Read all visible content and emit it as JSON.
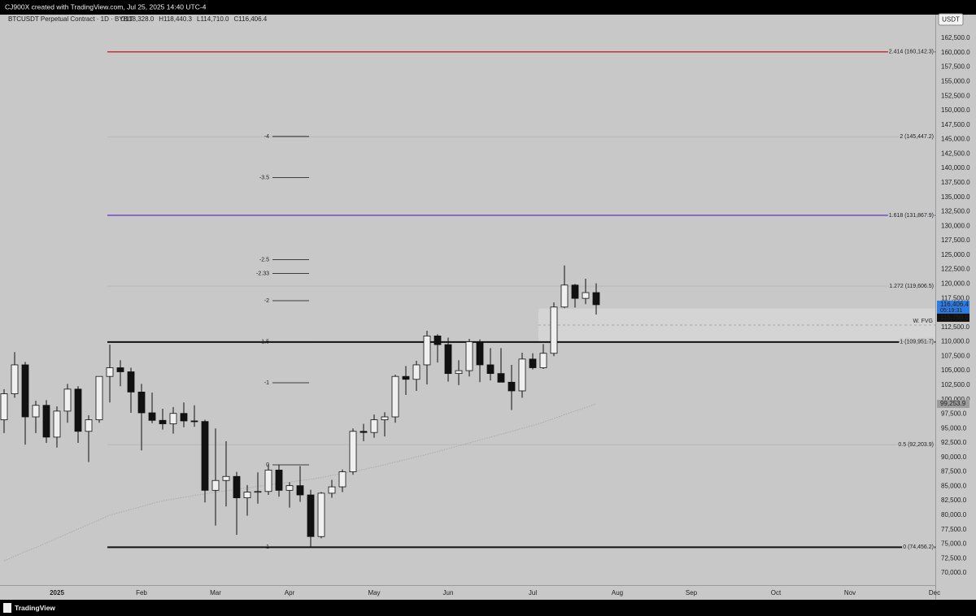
{
  "header": "CJ900X created with TradingView.com, Jul 25, 2025 14:40 UTC-4",
  "footer": "TradingView",
  "currency_button": "USDT",
  "chart_data": {
    "type": "candlestick",
    "symbol": "BTCUSDT Perpetual Contract · 1D · BYBIT",
    "ohlc": [
      "O118,328.0",
      "H118,440.3",
      "L114,710.0",
      "C116,406.4"
    ],
    "up_color": "#f0f0f0",
    "down_color": "#111111",
    "categories": [
      null,
      null,
      null,
      null,
      null,
      "2025",
      null,
      null,
      null,
      null,
      null,
      null,
      null,
      "Feb",
      null,
      null,
      null,
      null,
      null,
      null,
      "Mar",
      null,
      null,
      null,
      null,
      null,
      null,
      "Apr",
      null,
      null,
      null,
      null,
      null,
      null,
      null,
      "May",
      null,
      null,
      null,
      null,
      null,
      null,
      "Jun",
      null,
      null,
      null,
      null,
      null,
      null,
      null,
      "Jul",
      null,
      null,
      null,
      null,
      null,
      null,
      null,
      "Aug",
      null,
      null,
      null,
      null,
      null,
      null,
      "Sep",
      null,
      null,
      null,
      null,
      null,
      null,
      null,
      "Oct",
      null,
      null,
      null,
      null,
      null,
      null,
      "Nov",
      null,
      null,
      null,
      null,
      null,
      null,
      null,
      "Dec"
    ],
    "open": [
      96500,
      101000,
      106000,
      97000,
      99000,
      93500,
      98000,
      101800,
      94500,
      96500,
      104000,
      105500,
      104800,
      101300,
      97700,
      96400,
      95800,
      97600,
      96300,
      96200,
      84300,
      86000,
      86700,
      83000,
      84000,
      84100,
      87800,
      84300,
      85100,
      83500,
      76300,
      83800,
      84900,
      87500,
      94500,
      94300,
      96500,
      97000,
      104000,
      103500,
      106000,
      111000,
      109500,
      104500,
      105000,
      110000,
      106000,
      104500,
      103000,
      101500,
      107000,
      105500,
      108000,
      116000,
      119800,
      117500,
      118500,
      null,
      null,
      null,
      null,
      null,
      null,
      null,
      null,
      null,
      null,
      null,
      null,
      null,
      null,
      null,
      null,
      null,
      null,
      null,
      null,
      null,
      null,
      null,
      null,
      null,
      null,
      null,
      null,
      null,
      null,
      null,
      null
    ],
    "high": [
      101800,
      108200,
      106500,
      99800,
      99900,
      98800,
      102700,
      102300,
      97300,
      104000,
      109500,
      106800,
      105500,
      102700,
      101200,
      98400,
      98700,
      99500,
      99000,
      96500,
      95000,
      92800,
      87500,
      85200,
      87400,
      88800,
      88700,
      85700,
      88500,
      84400,
      84000,
      86100,
      87900,
      95000,
      95800,
      97400,
      97800,
      104300,
      105800,
      106700,
      111900,
      111300,
      110700,
      106800,
      110500,
      110400,
      108900,
      108900,
      106000,
      108100,
      108000,
      109600,
      116800,
      123200,
      120000,
      120900,
      120100,
      null,
      null,
      null,
      null,
      null,
      null,
      null,
      null,
      null,
      null,
      null,
      null,
      null,
      null,
      null,
      null,
      null,
      null,
      null,
      null,
      null,
      null,
      null,
      null,
      null,
      null,
      null,
      null,
      null,
      null,
      null,
      null
    ],
    "low": [
      94200,
      100300,
      92200,
      94200,
      92500,
      91700,
      96000,
      92500,
      89200,
      96000,
      99500,
      102300,
      97700,
      91200,
      95900,
      94800,
      94100,
      95200,
      95300,
      82200,
      78200,
      81500,
      76600,
      79900,
      82000,
      83500,
      83200,
      81300,
      82300,
      74500,
      76000,
      83000,
      84000,
      87000,
      92800,
      93400,
      93600,
      96000,
      100800,
      101500,
      102600,
      106400,
      103100,
      102500,
      104000,
      103000,
      103300,
      103400,
      98200,
      100300,
      105200,
      105300,
      107500,
      115800,
      115900,
      116500,
      114710,
      null,
      null,
      null,
      null,
      null,
      null,
      null,
      null,
      null,
      null,
      null,
      null,
      null,
      null,
      null,
      null,
      null,
      null,
      null,
      null,
      null,
      null,
      null,
      null,
      null,
      null,
      null,
      null,
      null,
      null,
      null,
      null
    ],
    "close": [
      101000,
      106000,
      97000,
      99000,
      93500,
      98000,
      101800,
      94500,
      96500,
      104000,
      105500,
      104800,
      101300,
      97700,
      96400,
      95800,
      97600,
      96300,
      96200,
      84300,
      86000,
      86700,
      83000,
      84000,
      84100,
      87800,
      84300,
      85100,
      83500,
      76300,
      83800,
      84900,
      87500,
      94500,
      94300,
      96500,
      97000,
      104000,
      103500,
      106000,
      111000,
      109500,
      104500,
      105000,
      110000,
      106000,
      104500,
      103000,
      101500,
      107000,
      105500,
      108000,
      116000,
      119800,
      117500,
      118500,
      116406.4,
      null,
      null,
      null,
      null,
      null,
      null,
      null,
      null,
      null,
      null,
      null,
      null,
      null,
      null,
      null,
      null,
      null,
      null,
      null,
      null,
      null,
      null,
      null,
      null,
      null,
      null,
      null,
      null,
      null,
      null,
      null,
      null
    ],
    "moving_average": {
      "color": "#a9a9a9",
      "values": [
        72100,
        72900,
        73700,
        74400,
        75200,
        76000,
        76800,
        77600,
        78400,
        79200,
        80000,
        80500,
        81000,
        81500,
        82000,
        82500,
        82800,
        83100,
        83400,
        83700,
        84000,
        84200,
        84500,
        84700,
        85000,
        85200,
        85500,
        85700,
        86000,
        86200,
        86500,
        86900,
        87200,
        87600,
        87900,
        88300,
        88700,
        89200,
        89600,
        90100,
        90500,
        91000,
        91500,
        92000,
        92500,
        93000,
        93500,
        94000,
        94500,
        95000,
        95500,
        96100,
        96700,
        97400,
        98000,
        98600,
        99253.9,
        null,
        null,
        null,
        null,
        null,
        null,
        null,
        null,
        null,
        null,
        null,
        null,
        null,
        null,
        null,
        null,
        null,
        null,
        null,
        null,
        null,
        null,
        null,
        null,
        null,
        null,
        null,
        null,
        null,
        null,
        null,
        null
      ]
    },
    "ma_label": {
      "value": 99253.9,
      "label": "99,253.9"
    },
    "last_price": {
      "value": 116406.4,
      "label": "116,406.4"
    },
    "countdown": "05:19:31",
    "fvg": {
      "label": "W. FVG",
      "top": 115750,
      "bottom": 110000,
      "price_label": {
        "value": 115750,
        "label": "115,750.0"
      }
    },
    "fib_right": [
      {
        "value": 160142.3,
        "label": "2.414 (160,142.3)",
        "color": "#c0282b",
        "width": 1.4
      },
      {
        "value": 145447.2,
        "label": "2 (145,447.2)",
        "color": "#b9b9b9",
        "width": 1
      },
      {
        "value": 131867.9,
        "label": "1.618 (131,867.9)",
        "color": "#6a3fc0",
        "width": 1.4
      },
      {
        "value": 119606.5,
        "label": "1.272 (119,606.5)",
        "color": "#b9b9b9",
        "width": 1
      },
      {
        "value": 109951.7,
        "label": "1 (109,951.7)",
        "color": "#111111",
        "width": 2
      },
      {
        "value": 92203.9,
        "label": "0.5 (92,203.9)",
        "color": "#b9b9b9",
        "width": 1
      },
      {
        "value": 74456.2,
        "label": "0 (74,456.2)",
        "color": "#111111",
        "width": 2
      }
    ],
    "fib_left": {
      "p0": 88700,
      "p1": 74500,
      "color": "#111111",
      "levels": [
        -4,
        -3.5,
        -2.5,
        -2.33,
        -2,
        -1.5,
        -1,
        0,
        1
      ]
    },
    "ylim": [
      67900,
      166580
    ],
    "yticks": [
      {
        "value": 70000,
        "label": "70,000.0"
      },
      {
        "value": 72500,
        "label": "72,500.0"
      },
      {
        "value": 75000,
        "label": "75,000.0"
      },
      {
        "value": 77500,
        "label": "77,500.0"
      },
      {
        "value": 80000,
        "label": "80,000.0"
      },
      {
        "value": 82500,
        "label": "82,500.0"
      },
      {
        "value": 85000,
        "label": "85,000.0"
      },
      {
        "value": 87500,
        "label": "87,500.0"
      },
      {
        "value": 90000,
        "label": "90,000.0"
      },
      {
        "value": 92500,
        "label": "92,500.0"
      },
      {
        "value": 95000,
        "label": "95,000.0"
      },
      {
        "value": 97500,
        "label": "97,500.0"
      },
      {
        "value": 100000,
        "label": "100,000.0"
      },
      {
        "value": 102500,
        "label": "102,500.0"
      },
      {
        "value": 105000,
        "label": "105,000.0"
      },
      {
        "value": 107500,
        "label": "107,500.0"
      },
      {
        "value": 110000,
        "label": "110,000.0"
      },
      {
        "value": 112500,
        "label": "112,500.0"
      },
      {
        "value": 115000,
        "label": "115,000.0"
      },
      {
        "value": 117500,
        "label": "117,500.0"
      },
      {
        "value": 120000,
        "label": "120,000.0"
      },
      {
        "value": 122500,
        "label": "122,500.0"
      },
      {
        "value": 125000,
        "label": "125,000.0"
      },
      {
        "value": 127500,
        "label": "127,500.0"
      },
      {
        "value": 130000,
        "label": "130,000.0"
      },
      {
        "value": 132500,
        "label": "132,500.0"
      },
      {
        "value": 135000,
        "label": "135,000.0"
      },
      {
        "value": 137500,
        "label": "137,500.0"
      },
      {
        "value": 140000,
        "label": "140,000.0"
      },
      {
        "value": 142500,
        "label": "142,500.0"
      },
      {
        "value": 145000,
        "label": "145,000.0"
      },
      {
        "value": 147500,
        "label": "147,500.0"
      },
      {
        "value": 150000,
        "label": "150,000.0"
      },
      {
        "value": 152500,
        "label": "152,500.0"
      },
      {
        "value": 155000,
        "label": "155,000.0"
      },
      {
        "value": 157500,
        "label": "157,500.0"
      },
      {
        "value": 160000,
        "label": "160,000.0"
      },
      {
        "value": 162500,
        "label": "162,500.0"
      }
    ],
    "grid": false
  }
}
